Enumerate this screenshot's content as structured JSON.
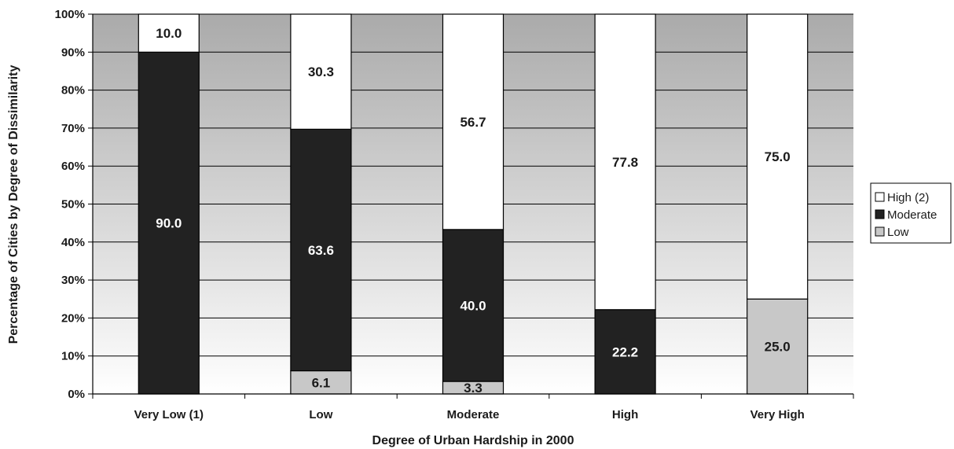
{
  "chart_data": {
    "type": "bar",
    "stacked": true,
    "xlabel": "Degree of Urban Hardship in 2000",
    "ylabel": "Percentage of Cities by Degree of Dissimilarity",
    "categories": [
      "Very Low (1)",
      "Low",
      "Moderate",
      "High",
      "Very High"
    ],
    "ylim": [
      0,
      100
    ],
    "yticks": [
      "0%",
      "10%",
      "20%",
      "30%",
      "40%",
      "50%",
      "60%",
      "70%",
      "80%",
      "90%",
      "100%"
    ],
    "grid": true,
    "legend_position": "right",
    "series": [
      {
        "name": "Low",
        "color": "#c8c8c8",
        "values": [
          0,
          6.1,
          3.3,
          0,
          25.0
        ],
        "labels": [
          "",
          "6.1",
          "3.3",
          "",
          "25.0"
        ]
      },
      {
        "name": "Moderate",
        "color": "#222222",
        "values": [
          90.0,
          63.6,
          40.0,
          22.2,
          0
        ],
        "labels": [
          "90.0",
          "63.6",
          "40.0",
          "22.2",
          ""
        ]
      },
      {
        "name": "High (2)",
        "color": "#ffffff",
        "values": [
          10.0,
          30.3,
          56.7,
          77.8,
          75.0
        ],
        "labels": [
          "10.0",
          "30.3",
          "56.7",
          "77.8",
          "75.0"
        ]
      }
    ],
    "legend_order": [
      "High (2)",
      "Moderate",
      "Low"
    ]
  }
}
